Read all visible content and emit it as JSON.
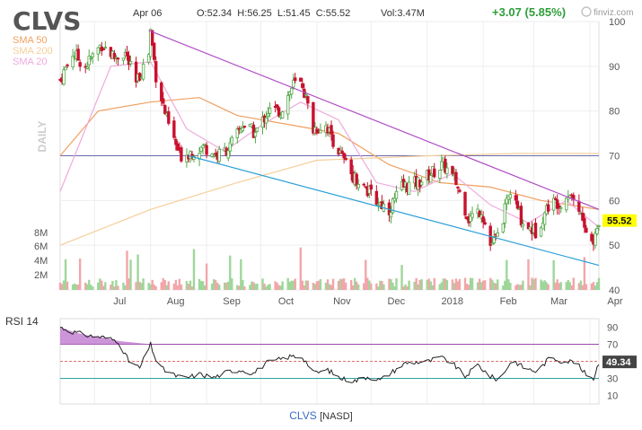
{
  "header": {
    "ticker": "CLVS",
    "date": "Apr 06",
    "ohlc": "O:52.34  H:56.25  L:51.45  C:55.52",
    "volume": "Vol:3.47M",
    "change": "+3.07 (5.85%)",
    "brand": "finviz.com",
    "period": "DAILY"
  },
  "legend": [
    {
      "label": "SMA 50",
      "color": "#f0a060"
    },
    {
      "label": "SMA 200",
      "color": "#f5cf9a"
    },
    {
      "label": "SMA 20",
      "color": "#eeaadd"
    }
  ],
  "footer": {
    "ticker": "CLVS",
    "exchange": "[NASD]"
  },
  "colors": {
    "up": "#53a747",
    "down": "#c8102e",
    "trend_upper": "#b04cc6",
    "trend_lower": "#2a9fd8",
    "price_badge": "#ffff00"
  },
  "chart_data": [
    {
      "type": "candlestick",
      "title": "CLVS",
      "y_ticks": [
        40,
        50,
        60,
        70,
        80,
        90,
        100
      ],
      "ylim": [
        40,
        100
      ],
      "x_ticks": [
        "Jul",
        "Aug",
        "Sep",
        "Oct",
        "Nov",
        "Dec",
        "2018",
        "Feb",
        "Mar",
        "Apr"
      ],
      "x_range": [
        "2017-06-12",
        "2018-04-06"
      ],
      "last_price": "55.52",
      "horizontal_line": 70,
      "trendlines": [
        {
          "name": "upper",
          "from": [
            "2017-07-31",
            98
          ],
          "to": [
            "2018-04-06",
            58
          ]
        },
        {
          "name": "lower",
          "from": [
            "2017-08-22",
            70
          ],
          "to": [
            "2018-04-06",
            45.5
          ]
        }
      ],
      "price_anchors": [
        [
          "2017-06-12",
          87
        ],
        [
          "2017-06-19",
          93
        ],
        [
          "2017-06-26",
          90
        ],
        [
          "2017-07-05",
          95
        ],
        [
          "2017-07-12",
          92
        ],
        [
          "2017-07-18",
          93
        ],
        [
          "2017-07-24",
          86
        ],
        [
          "2017-07-31",
          93
        ],
        [
          "2017-08-01",
          98
        ],
        [
          "2017-08-04",
          88
        ],
        [
          "2017-08-10",
          78
        ],
        [
          "2017-08-17",
          70
        ],
        [
          "2017-08-24",
          71
        ],
        [
          "2017-08-31",
          72
        ],
        [
          "2017-09-07",
          70
        ],
        [
          "2017-09-14",
          72
        ],
        [
          "2017-09-21",
          77
        ],
        [
          "2017-09-28",
          75
        ],
        [
          "2017-10-05",
          80
        ],
        [
          "2017-10-12",
          80
        ],
        [
          "2017-10-19",
          86
        ],
        [
          "2017-10-24",
          86
        ],
        [
          "2017-10-30",
          76
        ],
        [
          "2017-11-06",
          77
        ],
        [
          "2017-11-13",
          71
        ],
        [
          "2017-11-20",
          66
        ],
        [
          "2017-11-27",
          63
        ],
        [
          "2017-12-04",
          60
        ],
        [
          "2017-12-11",
          58
        ],
        [
          "2017-12-18",
          63
        ],
        [
          "2017-12-27",
          64
        ],
        [
          "2018-01-03",
          66
        ],
        [
          "2018-01-10",
          68
        ],
        [
          "2018-01-17",
          64
        ],
        [
          "2018-01-24",
          56
        ],
        [
          "2018-01-31",
          58
        ],
        [
          "2018-02-05",
          50
        ],
        [
          "2018-02-09",
          52
        ],
        [
          "2018-02-16",
          62
        ],
        [
          "2018-02-23",
          55
        ],
        [
          "2018-03-02",
          53
        ],
        [
          "2018-03-09",
          59
        ],
        [
          "2018-03-16",
          60
        ],
        [
          "2018-03-21",
          62
        ],
        [
          "2018-03-26",
          58
        ],
        [
          "2018-03-30",
          53
        ],
        [
          "2018-04-03",
          50
        ],
        [
          "2018-04-06",
          55.5
        ]
      ],
      "sma": [
        {
          "name": "SMA 50",
          "values": [
            [
              "2017-06-12",
              70
            ],
            [
              "2017-07-03",
              80
            ],
            [
              "2017-08-01",
              82
            ],
            [
              "2017-08-28",
              83
            ],
            [
              "2017-09-18",
              79
            ],
            [
              "2017-10-16",
              77
            ],
            [
              "2017-11-13",
              75
            ],
            [
              "2017-12-11",
              68
            ],
            [
              "2018-01-08",
              64
            ],
            [
              "2018-02-05",
              63
            ],
            [
              "2018-03-05",
              60
            ],
            [
              "2018-04-06",
              58
            ]
          ]
        },
        {
          "name": "SMA 200",
          "values": [
            [
              "2017-06-12",
              50
            ],
            [
              "2017-08-01",
              58
            ],
            [
              "2017-09-18",
              64
            ],
            [
              "2017-11-01",
              69
            ],
            [
              "2018-01-02",
              70
            ],
            [
              "2018-02-19",
              70.5
            ],
            [
              "2018-04-06",
              70.5
            ]
          ]
        },
        {
          "name": "SMA 20",
          "values": [
            [
              "2017-06-12",
              62
            ],
            [
              "2017-07-10",
              90
            ],
            [
              "2017-08-01",
              91
            ],
            [
              "2017-08-21",
              76
            ],
            [
              "2017-09-11",
              71
            ],
            [
              "2017-10-02",
              77
            ],
            [
              "2017-10-23",
              82
            ],
            [
              "2017-11-13",
              78
            ],
            [
              "2017-12-04",
              64
            ],
            [
              "2017-12-25",
              62
            ],
            [
              "2018-01-15",
              66
            ],
            [
              "2018-02-05",
              59
            ],
            [
              "2018-02-26",
              55
            ],
            [
              "2018-03-19",
              60
            ],
            [
              "2018-04-06",
              54
            ]
          ]
        }
      ],
      "volume_ticks": [
        "2M",
        "4M",
        "6M",
        "8M"
      ]
    },
    {
      "type": "line",
      "title": "RSI 14",
      "y_ticks": [
        10,
        30,
        50,
        70,
        90
      ],
      "ylim": [
        0,
        100
      ],
      "reference_lines": [
        30,
        50,
        70
      ],
      "last_value": "49.34",
      "values": [
        [
          "2017-06-12",
          90
        ],
        [
          "2017-06-20",
          84
        ],
        [
          "2017-06-28",
          80
        ],
        [
          "2017-07-06",
          78
        ],
        [
          "2017-07-14",
          74
        ],
        [
          "2017-07-20",
          50
        ],
        [
          "2017-07-26",
          42
        ],
        [
          "2017-08-01",
          70
        ],
        [
          "2017-08-05",
          45
        ],
        [
          "2017-08-12",
          35
        ],
        [
          "2017-08-20",
          30
        ],
        [
          "2017-08-28",
          35
        ],
        [
          "2017-09-05",
          31
        ],
        [
          "2017-09-13",
          38
        ],
        [
          "2017-09-20",
          40
        ],
        [
          "2017-09-27",
          36
        ],
        [
          "2017-10-04",
          48
        ],
        [
          "2017-10-11",
          52
        ],
        [
          "2017-10-18",
          56
        ],
        [
          "2017-10-24",
          55
        ],
        [
          "2017-10-31",
          36
        ],
        [
          "2017-11-07",
          40
        ],
        [
          "2017-11-14",
          30
        ],
        [
          "2017-11-22",
          27
        ],
        [
          "2017-11-29",
          32
        ],
        [
          "2017-12-06",
          28
        ],
        [
          "2017-12-13",
          38
        ],
        [
          "2017-12-20",
          48
        ],
        [
          "2018-01-02",
          50
        ],
        [
          "2018-01-08",
          55
        ],
        [
          "2018-01-15",
          48
        ],
        [
          "2018-01-22",
          32
        ],
        [
          "2018-01-29",
          46
        ],
        [
          "2018-02-05",
          32
        ],
        [
          "2018-02-10",
          28
        ],
        [
          "2018-02-17",
          52
        ],
        [
          "2018-02-24",
          42
        ],
        [
          "2018-03-03",
          38
        ],
        [
          "2018-03-10",
          55
        ],
        [
          "2018-03-17",
          50
        ],
        [
          "2018-03-24",
          50
        ],
        [
          "2018-03-28",
          38
        ],
        [
          "2018-04-03",
          30
        ],
        [
          "2018-04-06",
          49
        ]
      ]
    }
  ]
}
